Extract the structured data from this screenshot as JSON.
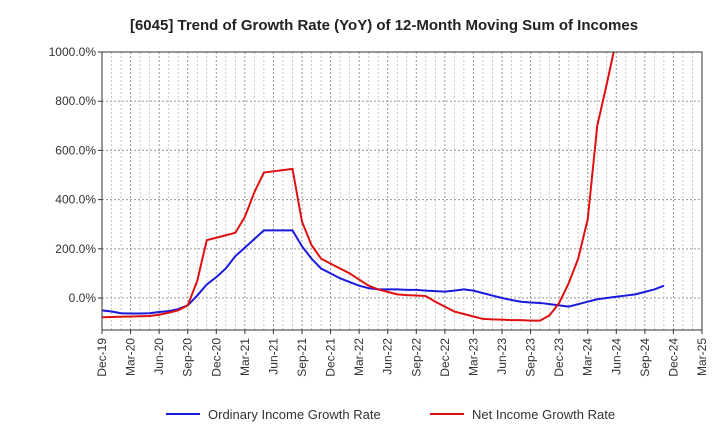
{
  "chart_data": {
    "type": "line",
    "title": "[6045]  Trend of Growth Rate (YoY) of 12-Month Moving Sum of Incomes",
    "xlabel": "",
    "ylabel": "",
    "ylim": [
      -130,
      1000
    ],
    "grid": true,
    "legend_position": "bottom",
    "y_ticks": [
      "0.0%",
      "200.0%",
      "400.0%",
      "600.0%",
      "800.0%",
      "1000.0%"
    ],
    "x_tick_labels": [
      "Dec-19",
      "Mar-20",
      "Jun-20",
      "Sep-20",
      "Dec-20",
      "Mar-21",
      "Jun-21",
      "Sep-21",
      "Dec-21",
      "Mar-22",
      "Jun-22",
      "Sep-22",
      "Dec-22",
      "Mar-23",
      "Jun-23",
      "Sep-23",
      "Dec-23",
      "Mar-24",
      "Jun-24",
      "Sep-24",
      "Dec-24",
      "Mar-25"
    ],
    "series": [
      {
        "name": "Ordinary Income Growth Rate",
        "color": "#1a1adc",
        "x": [
          0,
          1,
          2,
          3,
          4,
          5,
          6,
          7,
          8,
          9,
          10,
          11,
          12,
          13,
          14,
          15,
          16,
          17,
          18,
          19,
          20,
          21,
          22,
          23,
          24,
          25,
          26,
          27,
          28,
          29,
          30,
          31,
          32,
          33,
          34,
          35,
          36,
          37,
          38,
          39,
          40,
          41,
          42,
          43,
          44,
          45,
          46,
          47,
          48,
          49,
          50,
          51,
          52,
          53,
          54,
          55,
          56,
          57,
          58,
          59,
          60
        ],
        "values": [
          -50,
          -55,
          -62,
          -63,
          -63,
          -62,
          -57,
          -53,
          -45,
          -30,
          10,
          55,
          85,
          120,
          170,
          205,
          240,
          275,
          275,
          275,
          275,
          210,
          160,
          120,
          100,
          80,
          65,
          50,
          40,
          35,
          35,
          35,
          33,
          33,
          30,
          28,
          26,
          30,
          35,
          30,
          20,
          10,
          0,
          -8,
          -15,
          -18,
          -20,
          -25,
          -30,
          -35,
          -25,
          -15,
          -5,
          0,
          5,
          10,
          15,
          25,
          35,
          50,
          null
        ]
      },
      {
        "name": "Net Income Growth Rate",
        "color": "#e01010",
        "x": [
          0,
          1,
          2,
          3,
          4,
          5,
          6,
          7,
          8,
          9,
          10,
          11,
          12,
          13,
          14,
          15,
          16,
          17,
          18,
          19,
          20,
          21,
          22,
          23,
          24,
          25,
          26,
          27,
          28,
          29,
          30,
          31,
          32,
          33,
          34,
          35,
          36,
          37,
          38,
          39,
          40,
          41,
          42,
          43,
          44,
          45,
          46,
          47,
          48,
          49,
          50,
          51,
          52,
          53,
          54,
          55
        ],
        "values": [
          -78,
          -77,
          -76,
          -75,
          -74,
          -73,
          -68,
          -60,
          -50,
          -30,
          70,
          235,
          245,
          255,
          265,
          330,
          430,
          510,
          515,
          520,
          525,
          310,
          215,
          160,
          140,
          120,
          100,
          75,
          50,
          35,
          25,
          15,
          12,
          10,
          8,
          -15,
          -35,
          -55,
          -65,
          -75,
          -85,
          -87,
          -88,
          -90,
          -90,
          -92,
          -92,
          -70,
          -20,
          60,
          160,
          320,
          700,
          870,
          1050,
          1200
        ]
      }
    ]
  }
}
